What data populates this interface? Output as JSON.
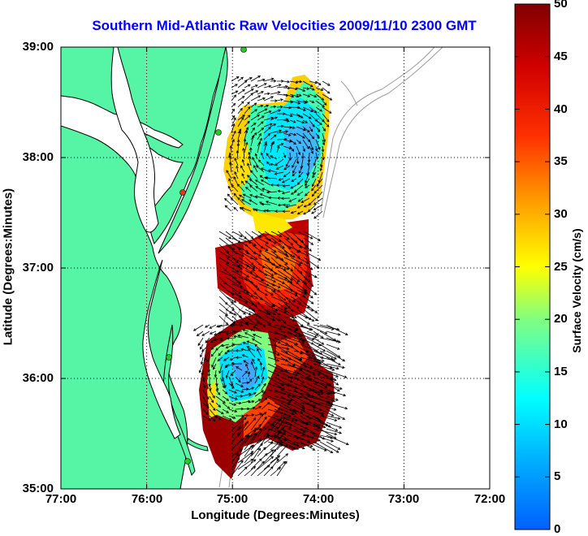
{
  "title": "Southern Mid-Atlantic Raw Velocities 2009/11/10 2300 GMT",
  "xlabel": "Longitude (Degrees:Minutes)",
  "ylabel": "Latitude (Degrees:Minutes)",
  "colorbar_label": "Surface Velocity (cm/s)",
  "map": {
    "x_ticks": [
      "77:00",
      "76:00",
      "75:00",
      "74:00",
      "73:00",
      "72:00"
    ],
    "y_ticks": [
      "39:00",
      "38:00",
      "37:00",
      "36:00",
      "35:00"
    ],
    "lon_range": [
      -77,
      -72
    ],
    "lat_range": [
      35,
      39
    ],
    "land_color": "#55f5a5",
    "grid": "dotted",
    "station_colors": {
      "active": "#22cc22",
      "inactive": "#ee3311"
    }
  },
  "colorbar": {
    "ticks": [
      "50",
      "45",
      "40",
      "35",
      "30",
      "25",
      "20",
      "15",
      "10",
      "5",
      "0"
    ],
    "range": [
      0,
      50
    ],
    "colormap": "jet"
  }
}
